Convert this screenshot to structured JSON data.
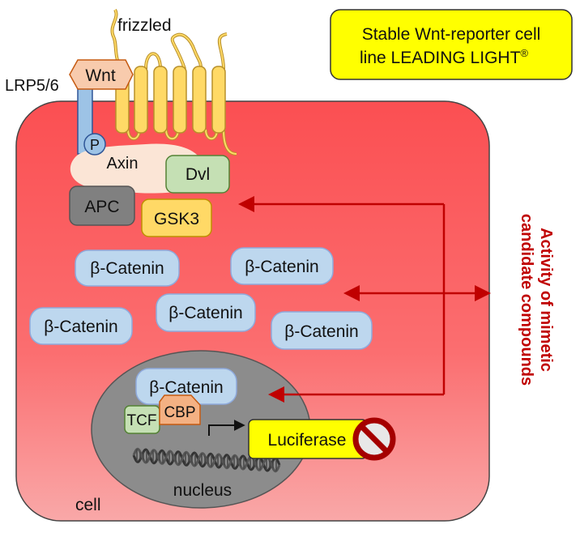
{
  "title_box": {
    "line1": "Stable Wnt-reporter cell",
    "line2": "line LEADING LIGHT",
    "mark": "®"
  },
  "receptors": {
    "frizzled": "frizzled",
    "wnt": "Wnt",
    "lrp": "LRP5/6",
    "phospho": "P"
  },
  "complex": {
    "axin": "Axin",
    "dvl": "Dvl",
    "apc": "APC",
    "gsk3": "GSK3"
  },
  "beta_catenin": {
    "label": "β-Catenin",
    "instances": [
      "β-Catenin",
      "β-Catenin",
      "β-Catenin",
      "β-Catenin",
      "β-Catenin"
    ]
  },
  "nucleus": {
    "label": "nucleus",
    "beta_catenin": "β-Catenin",
    "tcf": "TCF",
    "cbp": "CBP",
    "reporter": "Luciferase"
  },
  "cell_label": "cell",
  "side_label": {
    "line1": "Activity of mimetic",
    "line2": "candidate compounds"
  },
  "colors": {
    "cell_top": "#fb4f52",
    "cell_bottom": "#f9a2a2",
    "beta_catenin_fill": "#bdd7ee",
    "axin_fill": "#fbe5d6",
    "dvl_fill": "#c5e0b4",
    "apc_fill": "#808080",
    "gsk3_fill": "#ffd966",
    "nucleus_fill": "#8c8c8c",
    "luciferase_fill": "#ffff00",
    "arrow": "#c00000",
    "frizzled_fill": "#ffd966",
    "lrp_fill": "#9dc3e6",
    "wnt_fill": "#f8cbad",
    "tcf_fill": "#c5e0b4",
    "cbp_fill": "#f4b183"
  },
  "icons": {
    "prohibition": "prohibition-icon"
  }
}
